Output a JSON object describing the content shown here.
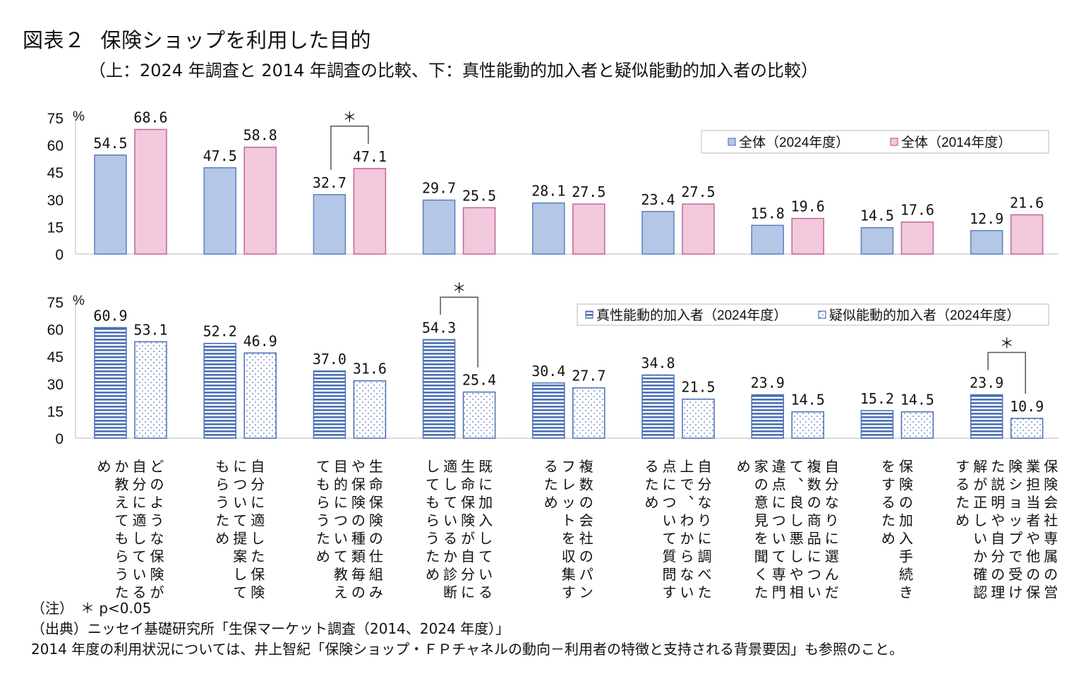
{
  "title": {
    "label": "図表２",
    "text": "保険ショップを利用した目的",
    "subtitle": "（上：2024 年調査と 2014 年調査の比較、下：真性能動的加入者と疑似能動的加入者の比較）"
  },
  "notes": {
    "note": "（注）　＊ p<0.05",
    "source": "（出典）ニッセイ基礎研究所「生保マーケット調査（2014、2024 年度）」",
    "reference": "2014 年度の利用状況については、井上智紀「保険ショップ・ＦＰチャネルの動向－利用者の特徴と支持される背景要因」も参照のこと。"
  },
  "categories": [
    "どのような保険が自分に適しているか教えてもらうため",
    "自分に適した保険について提案してもらうため",
    "生命保険の仕組みや保険の種類毎の目的について教えてもらうため",
    "既に加入している生命保険が自分に適しているか診断してもらうため",
    "複数の会社のパンフレットを収集するため",
    "自分なりに調べた上で、わからない点について質問するため",
    "自分なりに選んだ複数の商品について、良し悪しや相違点について専門家の意見を聞くため",
    "保険の加入手続きをするため",
    "保険会社専属の営業担当者や他の保険ショップで受けた説明や自分の理解が正しいか確認するため"
  ],
  "chart_data": [
    {
      "type": "bar",
      "title": "2024年調査と2014年調査の比較",
      "ylabel": "%",
      "ylim": [
        0,
        75
      ],
      "yticks": [
        "0",
        "15",
        "30",
        "45",
        "60",
        "75"
      ],
      "legend_position": "top-right",
      "series": [
        {
          "name": "全体（2024年度）",
          "color": "#b4c7e7",
          "stroke": "#5b7fbf",
          "pattern": "solid",
          "values": [
            54.5,
            47.5,
            32.7,
            29.7,
            28.1,
            23.4,
            15.8,
            14.5,
            12.9
          ],
          "labels": [
            "54.5",
            "47.5",
            "32.7",
            "29.7",
            "28.1",
            "23.4",
            "15.8",
            "14.5",
            "12.9"
          ]
        },
        {
          "name": "全体（2014年度）",
          "color": "#f2c8dc",
          "stroke": "#c0669a",
          "pattern": "solid",
          "values": [
            68.6,
            58.8,
            47.1,
            25.5,
            27.5,
            27.5,
            19.6,
            17.6,
            21.6
          ],
          "labels": [
            "68.6",
            "58.8",
            "47.1",
            "25.5",
            "27.5",
            "27.5",
            "19.6",
            "17.6",
            "21.6"
          ]
        }
      ],
      "significance": [
        {
          "category_index": 2,
          "mark": "＊"
        }
      ]
    },
    {
      "type": "bar",
      "title": "真性能動的加入者と疑似能動的加入者の比較",
      "ylabel": "%",
      "ylim": [
        0,
        75
      ],
      "yticks": [
        "0",
        "15",
        "30",
        "45",
        "60",
        "75"
      ],
      "legend_position": "top-right",
      "series": [
        {
          "name": "真性能動的加入者（2024年度）",
          "color": "#4a6fb5",
          "stroke": "#4a6fb5",
          "pattern": "horizontal-stripes",
          "values": [
            60.9,
            52.2,
            37.0,
            54.3,
            30.4,
            34.8,
            23.9,
            15.2,
            23.9
          ],
          "labels": [
            "60.9",
            "52.2",
            "37.0",
            "54.3",
            "30.4",
            "34.8",
            "23.9",
            "15.2",
            "23.9"
          ]
        },
        {
          "name": "疑似能動的加入者（2024年度）",
          "color": "#4a6fb5",
          "stroke": "#4a6fb5",
          "pattern": "dots",
          "values": [
            53.1,
            46.9,
            31.6,
            25.4,
            27.7,
            21.5,
            14.5,
            14.5,
            10.9
          ],
          "labels": [
            "53.1",
            "46.9",
            "31.6",
            "25.4",
            "27.7",
            "21.5",
            "14.5",
            "14.5",
            "10.9"
          ]
        }
      ],
      "significance": [
        {
          "category_index": 3,
          "mark": "＊"
        },
        {
          "category_index": 8,
          "mark": "＊"
        }
      ]
    }
  ]
}
